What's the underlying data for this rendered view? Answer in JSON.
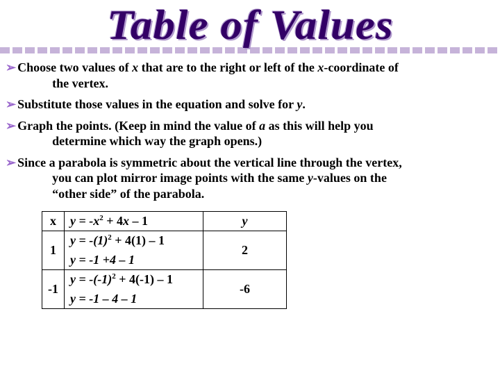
{
  "title": "Table of Values",
  "bullets": [
    {
      "line1": "Choose two values of ",
      "it1": "x",
      "line1b": " that are to the right or left of the ",
      "it2": "x",
      "line1c": "-coordinate of",
      "cont": "the vertex."
    },
    {
      "line1": "Substitute those values in the equation and solve for ",
      "it1": "y",
      "line1b": "."
    },
    {
      "line1": "Graph the points.  (Keep in mind the value of ",
      "it1": "a",
      "line1b": " as this will help you",
      "cont": "determine which way the graph opens.)"
    },
    {
      "line1": "Since a parabola is symmetric about the vertical line through the vertex,",
      "cont": "you can plot mirror image points with the same ",
      "it1": "y",
      "contb": "-values on the",
      "cont2": "“other side” of the parabola."
    }
  ],
  "table": {
    "header": {
      "x": "x",
      "eq_pre": "y = -",
      "eq_var": "x",
      "eq_post": " + 4",
      "eq_var2": "x",
      "eq_post2": " – 1",
      "y": "y"
    },
    "rows": [
      {
        "x": "1",
        "eq1_pre": "y = -(1)",
        "eq1_post": " + 4(1) – 1",
        "eq2": "y = -1 +4 – 1",
        "y": "2"
      },
      {
        "x": "-1",
        "eq1_pre": "y = -(-1)",
        "eq1_post": " + 4(-1) – 1",
        "eq2": "y = -1 – 4 – 1",
        "y": "-6"
      }
    ]
  },
  "colors": {
    "title": "#330066",
    "dash": "#c6b3d9",
    "arrow": "#9966cc"
  }
}
